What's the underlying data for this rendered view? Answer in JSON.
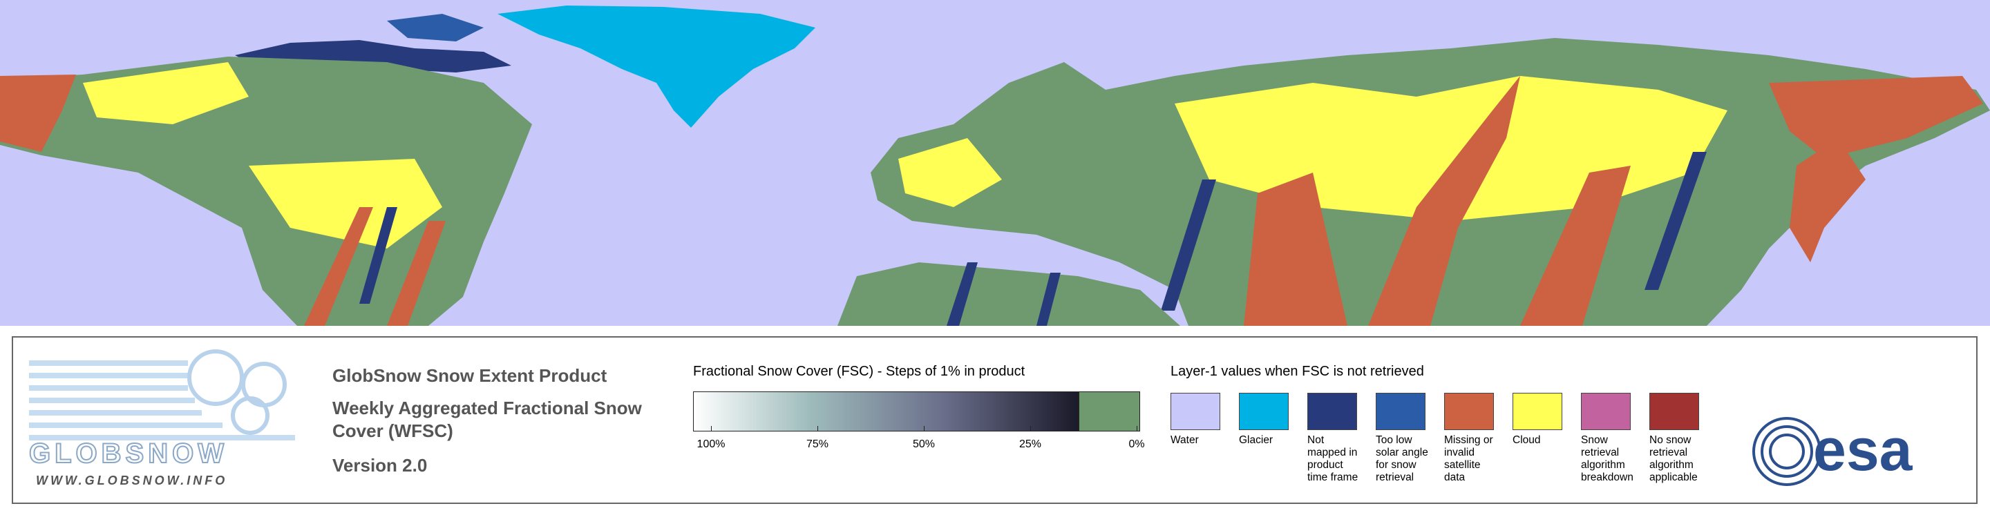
{
  "legend": {
    "product": {
      "title": "GlobSnow Snow Extent Product",
      "subtitle": "Weekly Aggregated Fractional Snow Cover (WFSC)",
      "version": "Version 2.0"
    },
    "logo": {
      "name": "GLOBSNOW",
      "url": "WWW.GLOBSNOW.INFO"
    },
    "fsc": {
      "title": "Fractional Snow Cover (FSC) - Steps of 1% in product",
      "ticks": [
        "100%",
        "75%",
        "50%",
        "25%",
        "0%"
      ],
      "snow_free_color": "#6f9a6f"
    },
    "layer1": {
      "title": "Layer-1 values when FSC is not retrieved",
      "items": [
        {
          "label": "Water",
          "color": "#c8c8fa"
        },
        {
          "label": "Glacier",
          "color": "#00b2e4"
        },
        {
          "label": "Not mapped in product time frame",
          "color": "#263a7c"
        },
        {
          "label": "Too low solar angle for snow retrieval",
          "color": "#2b5ca8"
        },
        {
          "label": "Missing or invalid satellite data",
          "color": "#cc6242"
        },
        {
          "label": "Cloud",
          "color": "#ffff55"
        },
        {
          "label": "Snow retrieval algorithm breakdown",
          "color": "#c263a0"
        },
        {
          "label": "No snow retrieval algorithm applicable",
          "color": "#a03232"
        }
      ]
    },
    "agency": "esa"
  }
}
